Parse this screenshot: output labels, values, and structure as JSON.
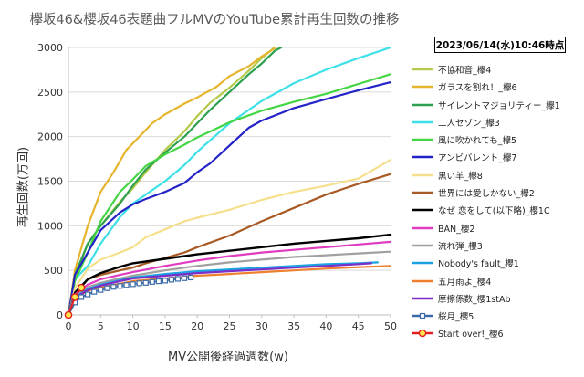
{
  "title": "欅坂46&櫻坂46表題曲フルMVのYouTube累計再生回数の推移",
  "timestamp": "2023/06/14(水)10:46時点",
  "chart_data": {
    "type": "line",
    "xlabel": "MV公開後経過週数(w)",
    "ylabel": "再生回数(万回)",
    "xlim": [
      0,
      50
    ],
    "ylim": [
      0,
      3000
    ],
    "xticks": [
      "0",
      "5",
      "10",
      "15",
      "20",
      "25",
      "30",
      "35",
      "40",
      "45",
      "50"
    ],
    "yticks": [
      "0",
      "500",
      "1000",
      "1500",
      "2000",
      "2500",
      "3000"
    ],
    "grid": "horizontal",
    "legend_position": "right",
    "series": [
      {
        "name": "不協和音_欅4",
        "color": "#b5c94a",
        "width": 2.2,
        "points": [
          [
            0,
            0
          ],
          [
            1,
            420
          ],
          [
            3,
            800
          ],
          [
            5,
            1000
          ],
          [
            8,
            1270
          ],
          [
            10,
            1420
          ],
          [
            12,
            1600
          ],
          [
            15,
            1850
          ],
          [
            18,
            2060
          ],
          [
            20,
            2230
          ],
          [
            22,
            2380
          ],
          [
            25,
            2550
          ],
          [
            28,
            2740
          ],
          [
            30,
            2880
          ],
          [
            32,
            3000
          ]
        ]
      },
      {
        "name": "ガラスを割れ！_欅6",
        "color": "#e6b52d",
        "width": 2.2,
        "points": [
          [
            0,
            0
          ],
          [
            1,
            500
          ],
          [
            2,
            750
          ],
          [
            3,
            1000
          ],
          [
            5,
            1380
          ],
          [
            7,
            1600
          ],
          [
            9,
            1850
          ],
          [
            11,
            2000
          ],
          [
            13,
            2150
          ],
          [
            15,
            2250
          ],
          [
            18,
            2370
          ],
          [
            20,
            2440
          ],
          [
            23,
            2560
          ],
          [
            25,
            2680
          ],
          [
            28,
            2790
          ],
          [
            30,
            2900
          ],
          [
            32,
            2990
          ]
        ]
      },
      {
        "name": "サイレントマジョリティー_欅1",
        "color": "#2da04f",
        "width": 2.2,
        "points": [
          [
            0,
            0
          ],
          [
            1,
            450
          ],
          [
            3,
            800
          ],
          [
            5,
            1000
          ],
          [
            8,
            1250
          ],
          [
            10,
            1450
          ],
          [
            12,
            1630
          ],
          [
            15,
            1820
          ],
          [
            18,
            2000
          ],
          [
            20,
            2150
          ],
          [
            22,
            2300
          ],
          [
            25,
            2500
          ],
          [
            28,
            2700
          ],
          [
            30,
            2820
          ],
          [
            32,
            2960
          ],
          [
            33,
            3000
          ]
        ]
      },
      {
        "name": "二人セゾン_欅3",
        "color": "#3ee0e8",
        "width": 2.2,
        "points": [
          [
            0,
            0
          ],
          [
            1,
            400
          ],
          [
            3,
            550
          ],
          [
            5,
            800
          ],
          [
            8,
            1100
          ],
          [
            10,
            1250
          ],
          [
            12,
            1350
          ],
          [
            15,
            1500
          ],
          [
            18,
            1680
          ],
          [
            20,
            1830
          ],
          [
            25,
            2150
          ],
          [
            30,
            2400
          ],
          [
            35,
            2600
          ],
          [
            40,
            2750
          ],
          [
            45,
            2880
          ],
          [
            50,
            3000
          ]
        ]
      },
      {
        "name": "風に吹かれても_欅5",
        "color": "#44d544",
        "width": 2.2,
        "points": [
          [
            0,
            0
          ],
          [
            1,
            380
          ],
          [
            3,
            700
          ],
          [
            5,
            1050
          ],
          [
            8,
            1380
          ],
          [
            10,
            1520
          ],
          [
            12,
            1670
          ],
          [
            15,
            1800
          ],
          [
            18,
            1910
          ],
          [
            20,
            1990
          ],
          [
            25,
            2160
          ],
          [
            30,
            2290
          ],
          [
            35,
            2390
          ],
          [
            40,
            2480
          ],
          [
            45,
            2590
          ],
          [
            50,
            2700
          ]
        ]
      },
      {
        "name": "アンビバレント_欅7",
        "color": "#2323c8",
        "width": 2.2,
        "points": [
          [
            0,
            0
          ],
          [
            1,
            450
          ],
          [
            3,
            700
          ],
          [
            5,
            950
          ],
          [
            8,
            1150
          ],
          [
            10,
            1240
          ],
          [
            12,
            1300
          ],
          [
            15,
            1380
          ],
          [
            18,
            1480
          ],
          [
            20,
            1600
          ],
          [
            22,
            1700
          ],
          [
            25,
            1900
          ],
          [
            28,
            2100
          ],
          [
            30,
            2180
          ],
          [
            35,
            2320
          ],
          [
            40,
            2420
          ],
          [
            45,
            2520
          ],
          [
            50,
            2610
          ]
        ]
      },
      {
        "name": "黒い羊_欅8",
        "color": "#f5df8a",
        "width": 2.2,
        "points": [
          [
            0,
            0
          ],
          [
            1,
            300
          ],
          [
            3,
            520
          ],
          [
            5,
            620
          ],
          [
            8,
            700
          ],
          [
            10,
            760
          ],
          [
            12,
            870
          ],
          [
            15,
            960
          ],
          [
            18,
            1050
          ],
          [
            20,
            1090
          ],
          [
            25,
            1180
          ],
          [
            30,
            1290
          ],
          [
            35,
            1380
          ],
          [
            40,
            1450
          ],
          [
            45,
            1530
          ],
          [
            50,
            1740
          ]
        ]
      },
      {
        "name": "世界には愛しかない_欅2",
        "color": "#a85a24",
        "width": 2.2,
        "points": [
          [
            0,
            0
          ],
          [
            1,
            230
          ],
          [
            3,
            400
          ],
          [
            5,
            450
          ],
          [
            8,
            500
          ],
          [
            10,
            530
          ],
          [
            12,
            580
          ],
          [
            15,
            640
          ],
          [
            18,
            700
          ],
          [
            20,
            760
          ],
          [
            25,
            890
          ],
          [
            30,
            1050
          ],
          [
            35,
            1200
          ],
          [
            40,
            1350
          ],
          [
            45,
            1470
          ],
          [
            50,
            1580
          ]
        ]
      },
      {
        "name": "なぜ 恋をして(以下略)_櫻1C",
        "color": "#000000",
        "width": 2.4,
        "points": [
          [
            0,
            0
          ],
          [
            1,
            250
          ],
          [
            3,
            400
          ],
          [
            5,
            470
          ],
          [
            8,
            540
          ],
          [
            10,
            580
          ],
          [
            15,
            630
          ],
          [
            20,
            680
          ],
          [
            25,
            720
          ],
          [
            30,
            760
          ],
          [
            35,
            800
          ],
          [
            40,
            830
          ],
          [
            45,
            860
          ],
          [
            50,
            900
          ]
        ]
      },
      {
        "name": "BAN_櫻2",
        "color": "#e03cc0",
        "width": 2.2,
        "points": [
          [
            0,
            0
          ],
          [
            1,
            230
          ],
          [
            3,
            340
          ],
          [
            5,
            400
          ],
          [
            8,
            450
          ],
          [
            10,
            480
          ],
          [
            15,
            550
          ],
          [
            20,
            610
          ],
          [
            25,
            660
          ],
          [
            30,
            700
          ],
          [
            35,
            730
          ],
          [
            40,
            760
          ],
          [
            45,
            790
          ],
          [
            50,
            820
          ]
        ]
      },
      {
        "name": "流れ弾_櫻3",
        "color": "#a0a0a0",
        "width": 2.2,
        "points": [
          [
            0,
            0
          ],
          [
            1,
            220
          ],
          [
            3,
            310
          ],
          [
            5,
            360
          ],
          [
            8,
            410
          ],
          [
            10,
            440
          ],
          [
            15,
            500
          ],
          [
            20,
            550
          ],
          [
            25,
            590
          ],
          [
            30,
            620
          ],
          [
            35,
            650
          ],
          [
            40,
            670
          ],
          [
            45,
            690
          ],
          [
            50,
            710
          ]
        ]
      },
      {
        "name": "Nobody's fault_櫻1",
        "color": "#1aa3e0",
        "width": 2.2,
        "points": [
          [
            0,
            0
          ],
          [
            1,
            200
          ],
          [
            3,
            290
          ],
          [
            5,
            340
          ],
          [
            8,
            390
          ],
          [
            10,
            420
          ],
          [
            15,
            460
          ],
          [
            20,
            490
          ],
          [
            25,
            510
          ],
          [
            30,
            530
          ],
          [
            35,
            550
          ],
          [
            40,
            570
          ],
          [
            45,
            580
          ],
          [
            48,
            590
          ]
        ]
      },
      {
        "name": "五月雨よ_櫻4",
        "color": "#ee8030",
        "width": 2.2,
        "points": [
          [
            0,
            0
          ],
          [
            1,
            180
          ],
          [
            3,
            270
          ],
          [
            5,
            310
          ],
          [
            8,
            350
          ],
          [
            10,
            380
          ],
          [
            15,
            410
          ],
          [
            20,
            440
          ],
          [
            25,
            460
          ],
          [
            30,
            480
          ],
          [
            35,
            500
          ],
          [
            40,
            520
          ],
          [
            45,
            535
          ],
          [
            50,
            550
          ]
        ]
      },
      {
        "name": "摩擦係数_櫻1stAb",
        "color": "#7d2ec8",
        "width": 2.2,
        "points": [
          [
            0,
            0
          ],
          [
            1,
            190
          ],
          [
            3,
            280
          ],
          [
            5,
            330
          ],
          [
            8,
            380
          ],
          [
            10,
            410
          ],
          [
            15,
            440
          ],
          [
            20,
            470
          ],
          [
            25,
            490
          ],
          [
            30,
            510
          ],
          [
            35,
            530
          ],
          [
            40,
            550
          ],
          [
            45,
            570
          ],
          [
            47,
            580
          ]
        ]
      },
      {
        "name": "桜月_櫻5",
        "color": "#3a6aa8",
        "width": 2,
        "marker": "square",
        "points": [
          [
            0,
            0
          ],
          [
            1,
            140
          ],
          [
            2,
            200
          ],
          [
            3,
            230
          ],
          [
            4,
            260
          ],
          [
            5,
            280
          ],
          [
            6,
            300
          ],
          [
            7,
            315
          ],
          [
            8,
            325
          ],
          [
            9,
            335
          ],
          [
            10,
            345
          ],
          [
            11,
            355
          ],
          [
            12,
            360
          ],
          [
            13,
            370
          ],
          [
            14,
            378
          ],
          [
            15,
            385
          ],
          [
            16,
            395
          ],
          [
            17,
            405
          ],
          [
            18,
            412
          ],
          [
            19,
            420
          ]
        ]
      },
      {
        "name": "Start over!_櫻6",
        "color": "#e32020",
        "width": 2,
        "marker": "circle",
        "points": [
          [
            0,
            0
          ],
          [
            1,
            200
          ],
          [
            2,
            305
          ]
        ]
      }
    ]
  }
}
